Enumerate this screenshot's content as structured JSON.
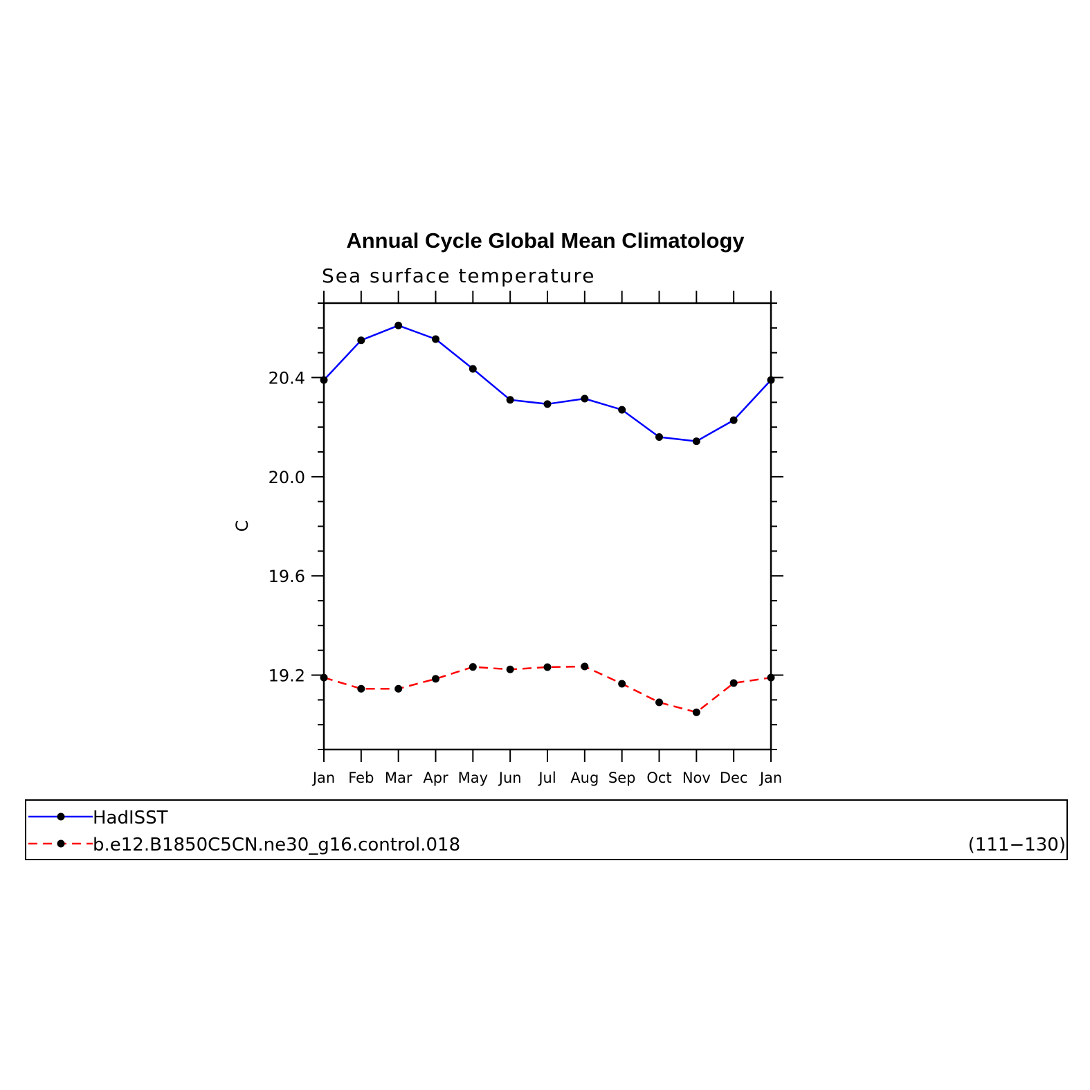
{
  "chart_data": {
    "type": "line",
    "title": "Annual Cycle Global Mean Climatology",
    "subtitle": "Sea surface temperature",
    "ylabel": "C",
    "xlabel": "",
    "categories": [
      "Jan",
      "Feb",
      "Mar",
      "Apr",
      "May",
      "Jun",
      "Jul",
      "Aug",
      "Sep",
      "Oct",
      "Nov",
      "Dec",
      "Jan"
    ],
    "ylim": [
      18.9,
      20.7
    ],
    "yticks": [
      19.2,
      19.6,
      20.0,
      20.4
    ],
    "ytick_labels": [
      "19.2",
      "19.6",
      "20.0",
      "20.4"
    ],
    "yminor_step": 0.1,
    "grid": false,
    "legend_position": "bottom",
    "series": [
      {
        "name": "HadISST",
        "color": "#0000ff",
        "dash": "solid",
        "marker": "filled-circle",
        "values": [
          20.39,
          20.55,
          20.61,
          20.555,
          20.435,
          20.31,
          20.293,
          20.315,
          20.27,
          20.16,
          20.143,
          20.228,
          20.39
        ]
      },
      {
        "name": "b.e12.B1850C5CN.ne30_g16.control.018",
        "color": "#ff0000",
        "dash": "dashed",
        "marker": "filled-circle",
        "values": [
          19.19,
          19.145,
          19.145,
          19.185,
          19.233,
          19.223,
          19.232,
          19.235,
          19.165,
          19.09,
          19.05,
          19.168,
          19.19
        ]
      }
    ],
    "legend_note": "(111−130)"
  }
}
